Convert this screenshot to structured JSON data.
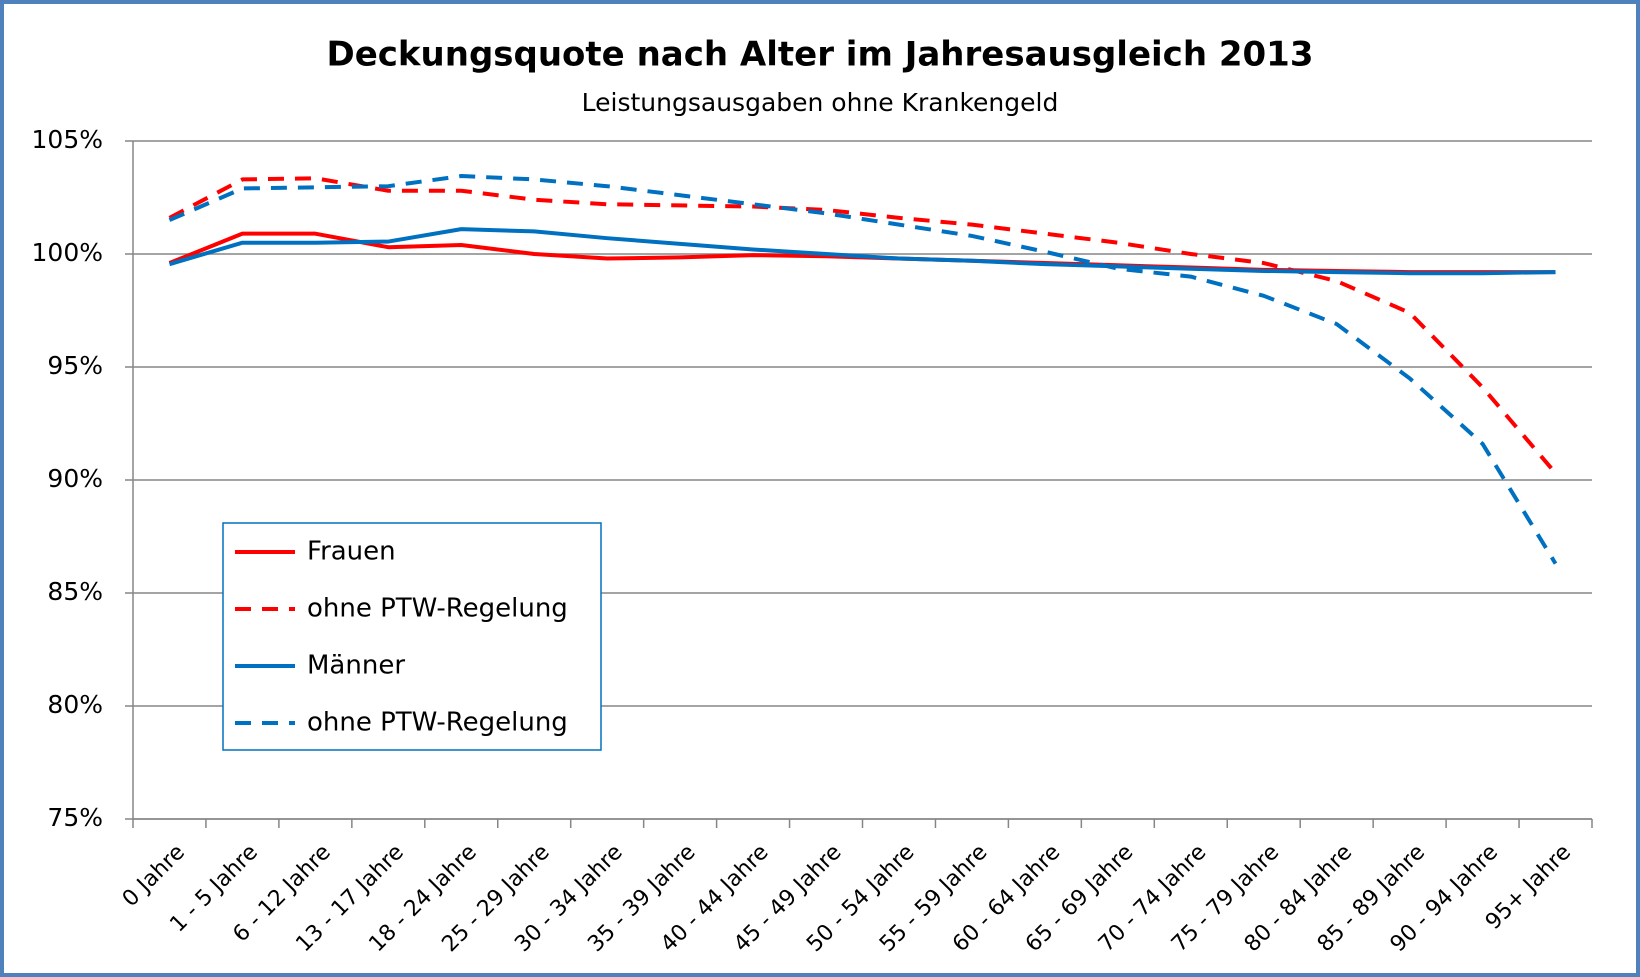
{
  "chart_data": {
    "type": "line",
    "title": "Deckungsquote nach Alter im Jahresausgleich 2013",
    "subtitle": "Leistungsausgaben ohne Krankengeld",
    "categories": [
      "0 Jahre",
      "1 - 5 Jahre",
      "6 - 12 Jahre",
      "13 - 17 Jahre",
      "18 - 24 Jahre",
      "25 - 29 Jahre",
      "30 - 34 Jahre",
      "35 - 39 Jahre",
      "40 - 44 Jahre",
      "45 - 49 Jahre",
      "50 - 54 Jahre",
      "55 - 59 Jahre",
      "60 - 64 Jahre",
      "65 - 69 Jahre",
      "70 - 74 Jahre",
      "75 - 79 Jahre",
      "80 - 84 Jahre",
      "85 - 89 Jahre",
      "90 - 94 Jahre",
      "95+ Jahre"
    ],
    "series": [
      {
        "name": "Frauen",
        "color": "#ff0000",
        "dashed": false,
        "values": [
          99.6,
          100.9,
          100.9,
          100.3,
          100.4,
          100.0,
          99.8,
          99.85,
          99.95,
          99.9,
          99.8,
          99.7,
          99.6,
          99.5,
          99.4,
          99.3,
          99.25,
          99.2,
          99.2,
          99.2
        ]
      },
      {
        "name": "ohne PTW-Regelung",
        "color": "#ff0000",
        "dashed": true,
        "values": [
          101.6,
          103.3,
          103.35,
          102.8,
          102.8,
          102.4,
          102.2,
          102.15,
          102.1,
          101.95,
          101.6,
          101.3,
          100.9,
          100.5,
          100.0,
          99.6,
          98.8,
          97.4,
          94.1,
          90.3
        ]
      },
      {
        "name": "Männer",
        "color": "#0070c0",
        "dashed": false,
        "values": [
          99.55,
          100.5,
          100.5,
          100.55,
          101.1,
          101.0,
          100.7,
          100.45,
          100.2,
          100.0,
          99.8,
          99.7,
          99.55,
          99.45,
          99.35,
          99.25,
          99.2,
          99.15,
          99.15,
          99.2
        ]
      },
      {
        "name": "ohne PTW-Regelung",
        "color": "#0070c0",
        "dashed": true,
        "values": [
          101.5,
          102.9,
          102.95,
          103.0,
          103.45,
          103.3,
          103.0,
          102.6,
          102.2,
          101.8,
          101.3,
          100.8,
          100.1,
          99.35,
          99.0,
          98.15,
          96.9,
          94.5,
          91.6,
          86.3
        ]
      }
    ],
    "ylim": [
      75,
      105
    ],
    "yticks": [
      {
        "value": 75,
        "label": "75%"
      },
      {
        "value": 80,
        "label": "80%"
      },
      {
        "value": 85,
        "label": "85%"
      },
      {
        "value": 90,
        "label": "90%"
      },
      {
        "value": 95,
        "label": "95%"
      },
      {
        "value": 100,
        "label": "100%"
      },
      {
        "value": 105,
        "label": "105%"
      }
    ],
    "grid": true,
    "legend_position": "left"
  }
}
